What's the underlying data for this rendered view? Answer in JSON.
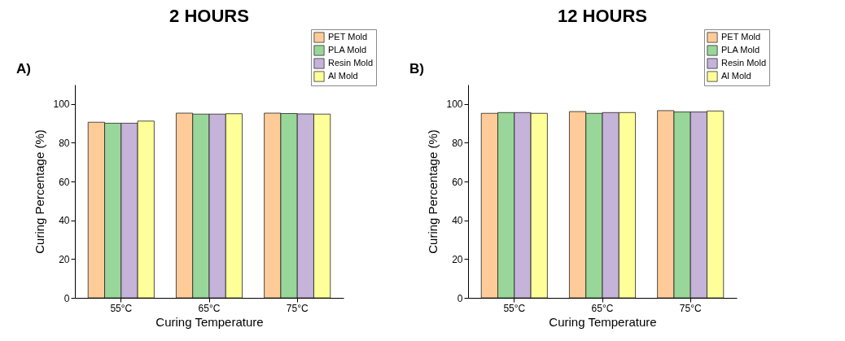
{
  "chart_data": [
    {
      "type": "bar",
      "title": "2 HOURS",
      "xlabel": "Curing Temperature",
      "ylabel": "Curing Percentage (%)",
      "annotations": [
        "A)"
      ],
      "categories": [
        "55°C",
        "65°C",
        "75°C"
      ],
      "series": [
        {
          "name": "PET Mold",
          "color": "#ffcc99",
          "values": [
            90.6,
            95.3,
            95.3
          ]
        },
        {
          "name": "PLA Mold",
          "color": "#99d699",
          "values": [
            90.1,
            94.8,
            95.1
          ]
        },
        {
          "name": "Resin Mold",
          "color": "#c6b3d9",
          "values": [
            90.1,
            94.8,
            94.9
          ]
        },
        {
          "name": "Al Mold",
          "color": "#ffff99",
          "values": [
            91.2,
            95.0,
            94.8
          ]
        }
      ],
      "ylim": [
        0,
        110
      ],
      "yticks": [
        0,
        20,
        40,
        60,
        80,
        100
      ],
      "grid": false,
      "legend": "top right"
    },
    {
      "type": "bar",
      "title": "12 HOURS",
      "xlabel": "Curing Temperature",
      "ylabel": "Curing Percentage (%)",
      "annotations": [
        "B)"
      ],
      "categories": [
        "55°C",
        "65°C",
        "75°C"
      ],
      "series": [
        {
          "name": "PET Mold",
          "color": "#ffcc99",
          "values": [
            95.2,
            96.1,
            96.6
          ]
        },
        {
          "name": "PLA Mold",
          "color": "#99d699",
          "values": [
            95.6,
            95.2,
            95.9
          ]
        },
        {
          "name": "Resin Mold",
          "color": "#c6b3d9",
          "values": [
            95.6,
            95.6,
            95.9
          ]
        },
        {
          "name": "Al Mold",
          "color": "#ffff99",
          "values": [
            95.2,
            95.6,
            96.4
          ]
        }
      ],
      "ylim": [
        0,
        110
      ],
      "yticks": [
        0,
        20,
        40,
        60,
        80,
        100
      ],
      "grid": false,
      "legend": "top right"
    }
  ]
}
